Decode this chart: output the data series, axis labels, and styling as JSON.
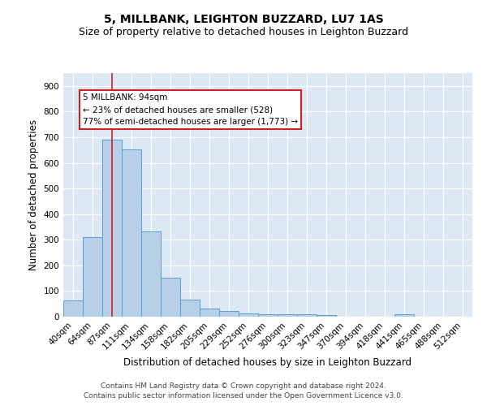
{
  "title": "5, MILLBANK, LEIGHTON BUZZARD, LU7 1AS",
  "subtitle": "Size of property relative to detached houses in Leighton Buzzard",
  "xlabel": "Distribution of detached houses by size in Leighton Buzzard",
  "ylabel": "Number of detached properties",
  "footer_line1": "Contains HM Land Registry data © Crown copyright and database right 2024.",
  "footer_line2": "Contains public sector information licensed under the Open Government Licence v3.0.",
  "bar_labels": [
    "40sqm",
    "64sqm",
    "87sqm",
    "111sqm",
    "134sqm",
    "158sqm",
    "182sqm",
    "205sqm",
    "229sqm",
    "252sqm",
    "276sqm",
    "300sqm",
    "323sqm",
    "347sqm",
    "370sqm",
    "394sqm",
    "418sqm",
    "441sqm",
    "465sqm",
    "488sqm",
    "512sqm"
  ],
  "bar_values": [
    63,
    311,
    689,
    653,
    331,
    152,
    65,
    32,
    23,
    12,
    9,
    9,
    10,
    6,
    0,
    0,
    0,
    8,
    0,
    0,
    0
  ],
  "bar_color": "#b8cfe8",
  "bar_edge_color": "#5a9fd4",
  "fig_background_color": "#ffffff",
  "plot_background_color": "#dde8f5",
  "grid_color": "#ffffff",
  "vline_x_index": 2,
  "vline_color": "#cc2222",
  "annotation_text": "5 MILLBANK: 94sqm\n← 23% of detached houses are smaller (528)\n77% of semi-detached houses are larger (1,773) →",
  "annotation_box_facecolor": "#ffffff",
  "annotation_box_edgecolor": "#cc2222",
  "ylim": [
    0,
    950
  ],
  "yticks": [
    0,
    100,
    200,
    300,
    400,
    500,
    600,
    700,
    800,
    900
  ],
  "title_fontsize": 10,
  "subtitle_fontsize": 9,
  "axis_label_fontsize": 8.5,
  "tick_fontsize": 7.5,
  "annotation_fontsize": 7.5,
  "footer_fontsize": 6.5
}
